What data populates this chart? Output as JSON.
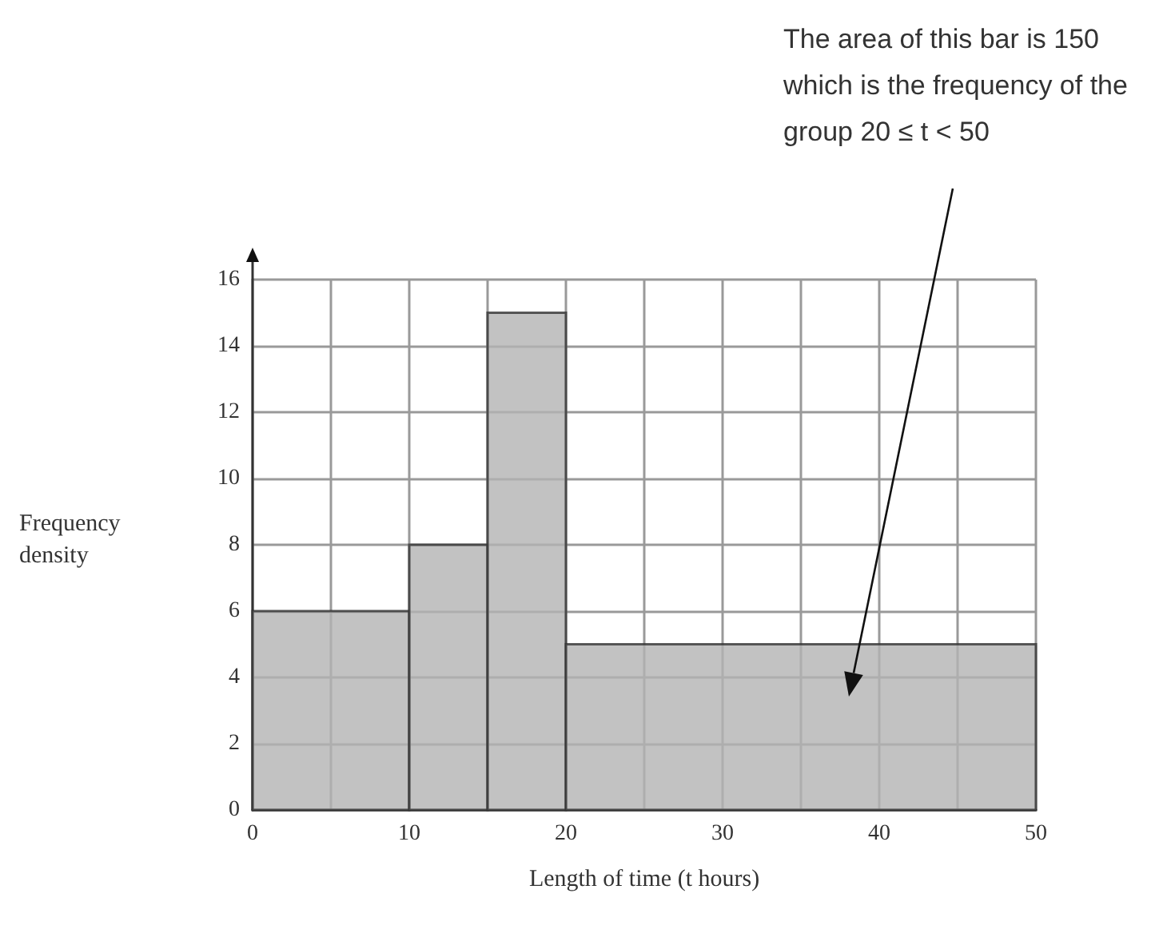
{
  "chart_data": {
    "type": "histogram",
    "xlabel": "Length of time (t hours)",
    "ylabel": "Frequency density",
    "bins": [
      0,
      10,
      15,
      20,
      50
    ],
    "values": [
      6,
      8,
      15,
      5
    ],
    "color": "#b3b3b3",
    "xlim": [
      0,
      50
    ],
    "xticks": [
      0,
      {
        "value": 5,
        "label": null
      },
      10,
      {
        "value": 15,
        "label": null
      },
      20,
      {
        "value": 25,
        "label": null
      },
      30,
      {
        "value": 35,
        "label": null
      },
      40,
      {
        "value": 45,
        "label": null
      },
      50
    ],
    "ylim": [
      0,
      16
    ],
    "yticks": [
      0,
      2,
      4,
      6,
      8,
      10,
      12,
      14,
      16
    ],
    "grid": true,
    "annotations": [
      "The area of this bar is 150 which is the frequency of the group 20 ≤ t < 50"
    ]
  }
}
